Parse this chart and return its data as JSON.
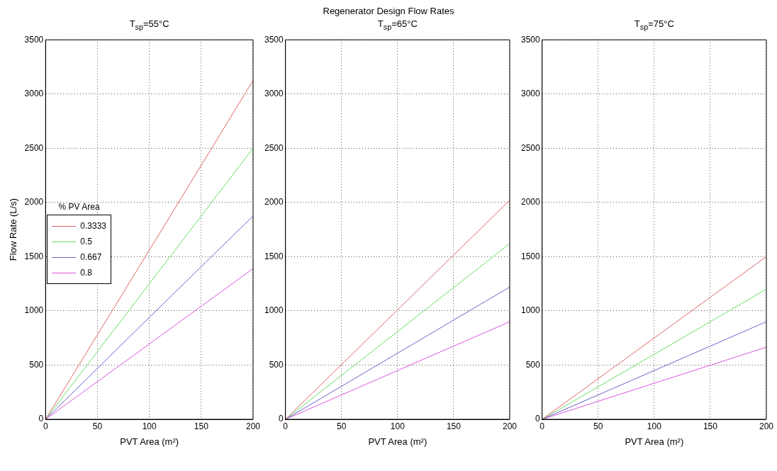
{
  "chart_data": [
    {
      "type": "line",
      "title": "T$_{sp}$=55°C",
      "annotations": [
        "Regenerator Design Flow Rates"
      ],
      "xlabel": "PVT Area (m²)",
      "ylabel": "Flow Rate (L/s)",
      "xlim": [
        0,
        200
      ],
      "xticks": [
        0,
        50,
        100,
        150,
        200
      ],
      "ylim": [
        0,
        3500
      ],
      "yticks": [
        0,
        500,
        1000,
        1500,
        2000,
        2500,
        3000,
        3500
      ],
      "grid": true,
      "legend": "left",
      "legend_title": "% PV Area",
      "x": [
        0,
        100,
        200
      ],
      "series": [
        {
          "name": "0.3333",
          "color": "#e06666",
          "values": [
            0,
            1560,
            3125
          ]
        },
        {
          "name": "0.5",
          "color": "#66dd66",
          "values": [
            0,
            1250,
            2500
          ]
        },
        {
          "name": "0.667",
          "color": "#6666cc",
          "values": [
            0,
            940,
            1875
          ]
        },
        {
          "name": "0.8",
          "color": "#dd55dd",
          "values": [
            0,
            695,
            1390
          ]
        }
      ]
    },
    {
      "type": "line",
      "title": "T$_{sp}$=65°C",
      "xlabel": "PVT Area (m²)",
      "xlim": [
        0,
        200
      ],
      "xticks": [
        0,
        50,
        100,
        150,
        200
      ],
      "ylim": [
        0,
        3500
      ],
      "yticks": [
        0,
        500,
        1000,
        1500,
        2000,
        2500,
        3000,
        3500
      ],
      "grid": true,
      "x": [
        0,
        200
      ],
      "series": [
        {
          "color": "#e06666",
          "values": [
            0,
            2020
          ]
        },
        {
          "color": "#66dd66",
          "values": [
            0,
            1620
          ]
        },
        {
          "color": "#6666cc",
          "values": [
            0,
            1220
          ]
        },
        {
          "color": "#dd55dd",
          "values": [
            0,
            900
          ]
        }
      ]
    },
    {
      "type": "line",
      "title": "T$_{sp}$=75°C",
      "xlabel": "PVT Area (m²)",
      "xlim": [
        0,
        200
      ],
      "xticks": [
        0,
        50,
        100,
        150,
        200
      ],
      "ylim": [
        0,
        3500
      ],
      "yticks": [
        0,
        500,
        1000,
        1500,
        2000,
        2500,
        3000,
        3500
      ],
      "grid": true,
      "x": [
        0,
        200
      ],
      "series": [
        {
          "color": "#e06666",
          "values": [
            0,
            1500
          ]
        },
        {
          "color": "#66dd66",
          "values": [
            0,
            1200
          ]
        },
        {
          "color": "#6666cc",
          "values": [
            0,
            900
          ]
        },
        {
          "color": "#dd55dd",
          "values": [
            0,
            665
          ]
        }
      ]
    }
  ]
}
